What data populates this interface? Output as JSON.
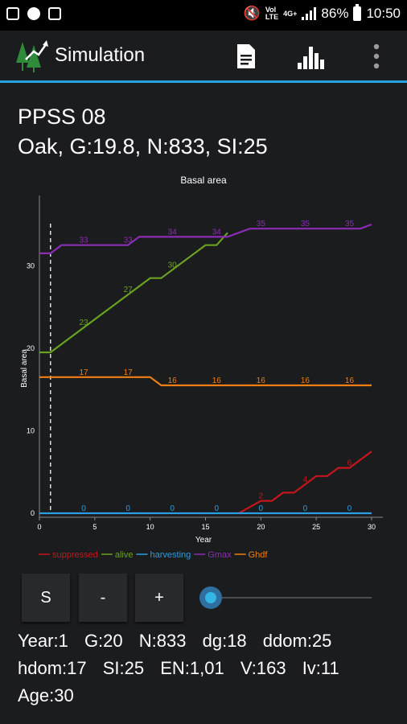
{
  "status_bar": {
    "battery": "86%",
    "time": "10:50",
    "net_top": "Vol",
    "net_bottom": "LTE",
    "net_gen": "4G+"
  },
  "app_bar": {
    "title": "Simulation"
  },
  "header": {
    "plot": "PPSS 08",
    "summary": "Oak, G:19.8, N:833, SI:25"
  },
  "controls": {
    "s_label": "S",
    "minus_label": "-",
    "plus_label": "+",
    "slider_value": 0
  },
  "info": {
    "line1": [
      "Year:1",
      "G:20",
      "N:833",
      "dg:18",
      "ddom:25"
    ],
    "line2": [
      "hdom:17",
      "SI:25",
      "EN:1,01",
      "V:163",
      "Iv:11"
    ],
    "line3": [
      "Age:30"
    ]
  },
  "colors": {
    "accent": "#29a3e0",
    "suppressed": "#c4161c",
    "alive": "#6aa121",
    "harvesting": "#2b9de0",
    "gmax": "#8e2bb5",
    "ghdf": "#f07e12"
  },
  "chart_data": {
    "type": "line",
    "title": "Basal area",
    "xlabel": "Year",
    "ylabel": "Basal area",
    "xlim": [
      0,
      30
    ],
    "ylim": [
      0,
      39
    ],
    "x_ticks": [
      0,
      5,
      10,
      15,
      20,
      25,
      30
    ],
    "y_ticks": [
      0,
      10,
      20,
      30
    ],
    "current_year": 1,
    "legend_position": "bottom",
    "series": [
      {
        "name": "suppressed",
        "color": "#c4161c",
        "points": [
          [
            18,
            0
          ],
          [
            20,
            1.5
          ],
          [
            21,
            1.5
          ],
          [
            22,
            2.5
          ],
          [
            23,
            2.5
          ],
          [
            24,
            3.5
          ],
          [
            25,
            4.5
          ],
          [
            26,
            4.5
          ],
          [
            27,
            5.5
          ],
          [
            28,
            5.5
          ],
          [
            30,
            7.5
          ]
        ],
        "labels": [
          {
            "x": 20,
            "text": "2"
          },
          {
            "x": 24,
            "text": "4"
          },
          {
            "x": 28,
            "text": "6"
          }
        ]
      },
      {
        "name": "alive",
        "color": "#6aa121",
        "points": [
          [
            0,
            19.5
          ],
          [
            1,
            19.5
          ],
          [
            10,
            28.5
          ],
          [
            11,
            28.5
          ],
          [
            15,
            32.5
          ],
          [
            16,
            32.5
          ],
          [
            17,
            34
          ]
        ],
        "labels": [
          {
            "x": 4,
            "text": "23"
          },
          {
            "x": 8,
            "text": "27"
          },
          {
            "x": 12,
            "text": "30"
          }
        ]
      },
      {
        "name": "harvesting",
        "color": "#2b9de0",
        "points": [
          [
            0,
            0
          ],
          [
            30,
            0
          ]
        ],
        "labels": [
          {
            "x": 4,
            "text": "0"
          },
          {
            "x": 8,
            "text": "0"
          },
          {
            "x": 12,
            "text": "0"
          },
          {
            "x": 16,
            "text": "0"
          },
          {
            "x": 20,
            "text": "0"
          },
          {
            "x": 24,
            "text": "0"
          },
          {
            "x": 28,
            "text": "0"
          }
        ]
      },
      {
        "name": "Gmax",
        "color": "#8e2bb5",
        "points": [
          [
            0,
            31.5
          ],
          [
            1,
            31.5
          ],
          [
            2,
            32.5
          ],
          [
            8,
            32.5
          ],
          [
            9,
            33.5
          ],
          [
            16,
            33.5
          ],
          [
            17,
            33.5
          ],
          [
            19,
            34.5
          ],
          [
            29,
            34.5
          ],
          [
            30,
            35
          ]
        ],
        "labels": [
          {
            "x": 4,
            "text": "33"
          },
          {
            "x": 8,
            "text": "33"
          },
          {
            "x": 12,
            "text": "34"
          },
          {
            "x": 16,
            "text": "34"
          },
          {
            "x": 20,
            "text": "35"
          },
          {
            "x": 24,
            "text": "35"
          },
          {
            "x": 28,
            "text": "35"
          }
        ]
      },
      {
        "name": "Ghdf",
        "color": "#f07e12",
        "points": [
          [
            0,
            16.5
          ],
          [
            10,
            16.5
          ],
          [
            11,
            15.5
          ],
          [
            30,
            15.5
          ]
        ],
        "labels": [
          {
            "x": 4,
            "text": "17"
          },
          {
            "x": 8,
            "text": "17"
          },
          {
            "x": 12,
            "text": "16"
          },
          {
            "x": 16,
            "text": "16"
          },
          {
            "x": 20,
            "text": "16"
          },
          {
            "x": 24,
            "text": "16"
          },
          {
            "x": 28,
            "text": "16"
          }
        ]
      }
    ]
  }
}
